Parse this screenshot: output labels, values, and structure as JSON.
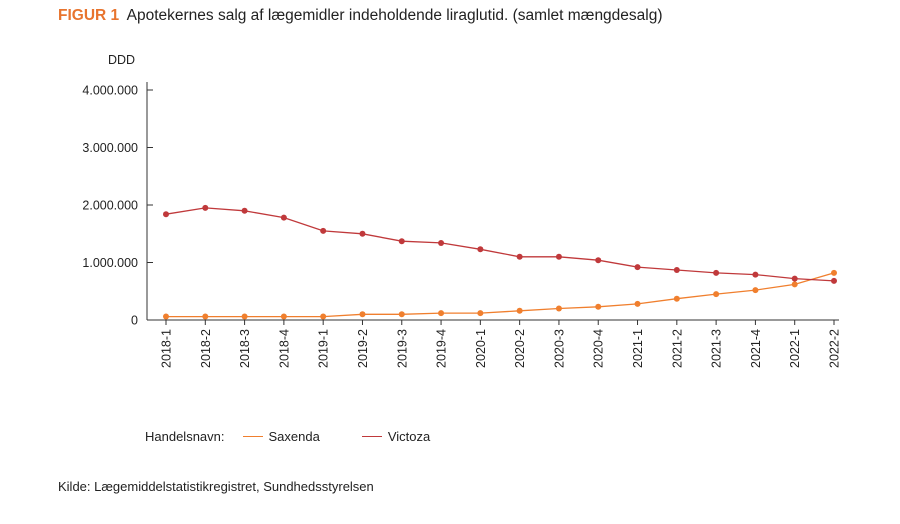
{
  "figure": {
    "label": "FIGUR 1",
    "title": "Apotekernes salg af lægemidler indeholdende liraglutid. (samlet mængdesalg)",
    "source": "Kilde: Lægemiddelstatistikregistret, Sundhedsstyrelsen"
  },
  "chart_data": {
    "type": "line",
    "ylabel": "DDD",
    "ylim": [
      0,
      4000000
    ],
    "yticks": [
      0,
      1000000,
      2000000,
      3000000,
      4000000
    ],
    "ytick_labels": [
      "0",
      "1.000.000",
      "2.000.000",
      "3.000.000",
      "4.000.000"
    ],
    "categories": [
      "2018-1",
      "2018-2",
      "2018-3",
      "2018-4",
      "2019-1",
      "2019-2",
      "2019-3",
      "2019-4",
      "2020-1",
      "2020-2",
      "2020-3",
      "2020-4",
      "2021-1",
      "2021-2",
      "2021-3",
      "2021-4",
      "2022-1",
      "2022-2"
    ],
    "legend_title": "Handelsnavn:",
    "legend_position": "bottom",
    "grid": false,
    "series": [
      {
        "name": "Saxenda",
        "color": "#f07f2e",
        "values": [
          60000,
          60000,
          60000,
          60000,
          60000,
          100000,
          100000,
          120000,
          120000,
          160000,
          200000,
          230000,
          280000,
          370000,
          450000,
          520000,
          620000,
          820000
        ]
      },
      {
        "name": "Victoza",
        "color": "#c0393b",
        "values": [
          1840000,
          1950000,
          1900000,
          1780000,
          1550000,
          1500000,
          1370000,
          1340000,
          1230000,
          1100000,
          1100000,
          1040000,
          920000,
          870000,
          820000,
          790000,
          720000,
          680000
        ]
      }
    ]
  }
}
